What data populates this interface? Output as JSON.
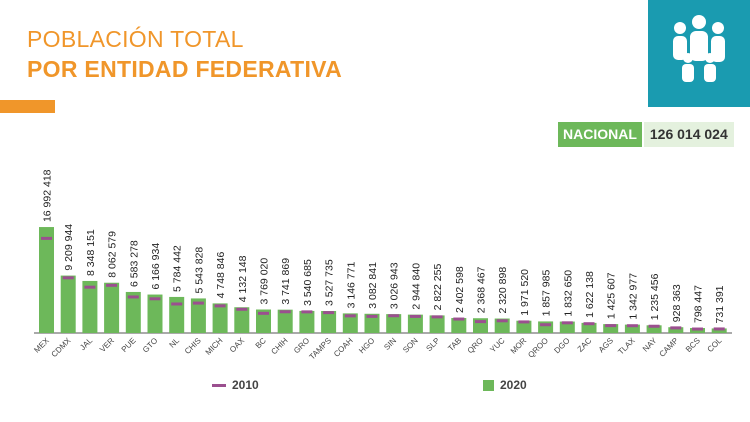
{
  "title_line1": "POBLACIÓN TOTAL",
  "title_line2": "POR ENTIDAD FEDERATIVA",
  "national": {
    "label": "NACIONAL",
    "value": "126 014 024"
  },
  "logo_icon": "family-icon",
  "colors": {
    "accent": "#f0962a",
    "bar_2020": "#6db85a",
    "marker_2010": "#9b4f8f",
    "logo_bg": "#1a9bb0"
  },
  "chart_data": {
    "type": "bar",
    "categories": [
      "MEX",
      "CDMX",
      "JAL",
      "VER",
      "PUE",
      "GTO",
      "NL",
      "CHIS",
      "MICH",
      "OAX",
      "BC",
      "CHIH",
      "GRO",
      "TAMPS",
      "COAH",
      "HGO",
      "SIN",
      "SON",
      "SLP",
      "TAB",
      "QRO",
      "YUC",
      "MOR",
      "QROO",
      "DGO",
      "ZAC",
      "AGS",
      "TLAX",
      "NAY",
      "CAMP",
      "BCS",
      "COL"
    ],
    "series": [
      {
        "name": "2020",
        "values": [
          16992418,
          9209944,
          8348151,
          8062579,
          6583278,
          6166934,
          5784442,
          5543828,
          4748846,
          4132148,
          3769020,
          3741869,
          3540685,
          3527735,
          3146771,
          3082841,
          3026943,
          2944840,
          2822255,
          2402598,
          2368467,
          2320898,
          1971520,
          1857985,
          1832650,
          1622138,
          1425607,
          1342977,
          1235456,
          928363,
          798447,
          731391
        ],
        "labels": [
          "16 992 418",
          "9 209 944",
          "8 348 151",
          "8 062 579",
          "6 583 278",
          "6 166 934",
          "5 784 442",
          "5 543 828",
          "4 748 846",
          "4 132 148",
          "3 769 020",
          "3 741 869",
          "3 540 685",
          "3 527 735",
          "3 146 771",
          "3 082 841",
          "3 026 943",
          "2 944 840",
          "2 822 255",
          "2 402 598",
          "2 368 467",
          "2 320 898",
          "1 971 520",
          "1 857 985",
          "1 832 650",
          "1 622 138",
          "1 425 607",
          "1 342 977",
          "1 235 456",
          "928 363",
          "798 447",
          "731 391"
        ]
      },
      {
        "name": "2010",
        "values": [
          15175862,
          8851080,
          7350682,
          7643194,
          5779829,
          5486372,
          4653458,
          4796580,
          4351037,
          3801962,
          3155070,
          3406465,
          3388768,
          3268554,
          2748391,
          2665018,
          2767761,
          2662480,
          2585518,
          2238603,
          1827937,
          1955577,
          1777227,
          1325578,
          1632934,
          1490668,
          1184996,
          1169936,
          1084979,
          822441,
          637026,
          650555
        ]
      }
    ],
    "ylim": [
      0,
      17000000
    ],
    "grid": false,
    "legend": {
      "items": [
        "2010",
        "2020"
      ],
      "placement": "bottom"
    }
  }
}
